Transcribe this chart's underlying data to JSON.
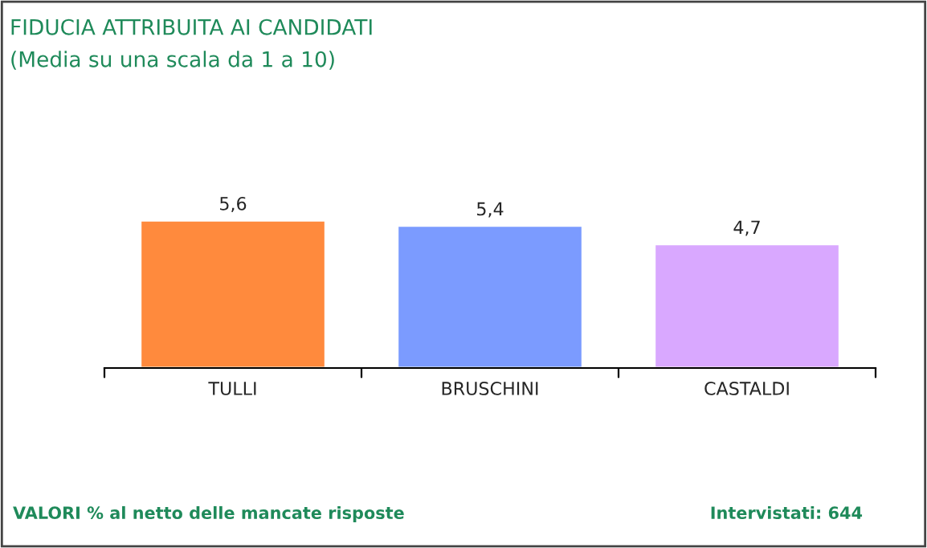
{
  "chart_data": {
    "type": "bar",
    "title": "FIDUCIA ATTRIBUITA AI CANDIDATI",
    "subtitle": "(Media su una scala da 1 a 10)",
    "categories": [
      "TULLI",
      "BRUSCHINI",
      "CASTALDI"
    ],
    "values": [
      5.6,
      5.4,
      4.7
    ],
    "colors": [
      "#ff8a3d",
      "#7b9bff",
      "#d9a8ff"
    ],
    "value_labels": [
      "5,6",
      "5,4",
      "4,7"
    ],
    "annotations": [
      "VALORI % al netto delle mancate risposte",
      "Intervistati: 644"
    ],
    "grid": false,
    "legend": false
  }
}
